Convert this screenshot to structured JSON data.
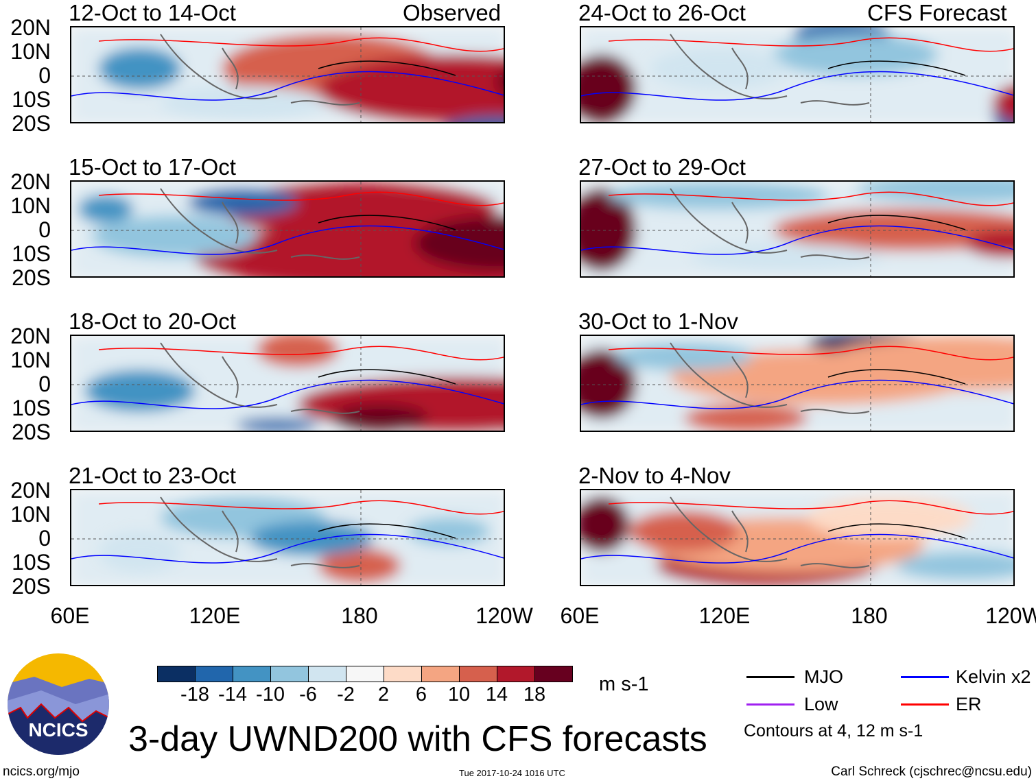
{
  "title": "3-day UWND200 with CFS forecasts",
  "observed_label": "Observed",
  "forecast_label": "CFS Forecast",
  "lat_labels": [
    "20N",
    "10N",
    "0",
    "10S",
    "20S"
  ],
  "lon_labels": [
    "60E",
    "120E",
    "180",
    "120W"
  ],
  "panels_observed": [
    {
      "title": "12-Oct to 14-Oct"
    },
    {
      "title": "15-Oct to 17-Oct"
    },
    {
      "title": "18-Oct to 20-Oct"
    },
    {
      "title": "21-Oct to 23-Oct"
    }
  ],
  "panels_forecast": [
    {
      "title": "24-Oct to 26-Oct"
    },
    {
      "title": "27-Oct to 29-Oct"
    },
    {
      "title": "30-Oct to 1-Nov"
    },
    {
      "title": "2-Nov to 4-Nov"
    }
  ],
  "colorbar": {
    "colors": [
      "#0b2f63",
      "#2166ac",
      "#4393c3",
      "#92c5de",
      "#d1e5f0",
      "#f7f7f7",
      "#fddbc7",
      "#f4a582",
      "#d6604d",
      "#b2182b",
      "#67001f"
    ],
    "labels": [
      "-18",
      "-14",
      "-10",
      "-6",
      "-2",
      "2",
      "6",
      "10",
      "14",
      "18"
    ],
    "units": "m s-1"
  },
  "legend": {
    "items": [
      {
        "label": "MJO",
        "color": "#000000"
      },
      {
        "label": "Kelvin x2",
        "color": "#0000ff"
      },
      {
        "label": "Low",
        "color": "#a020f0"
      },
      {
        "label": "ER",
        "color": "#ff0000"
      }
    ],
    "note": "Contours at 4, 12 m s-1"
  },
  "logo_text": "NCICS",
  "footer": {
    "left": "ncics.org/mjo",
    "center": "Tue 2017-10-24 1016 UTC",
    "right": "Carl Schreck (cjschrec@ncsu.edu)"
  }
}
